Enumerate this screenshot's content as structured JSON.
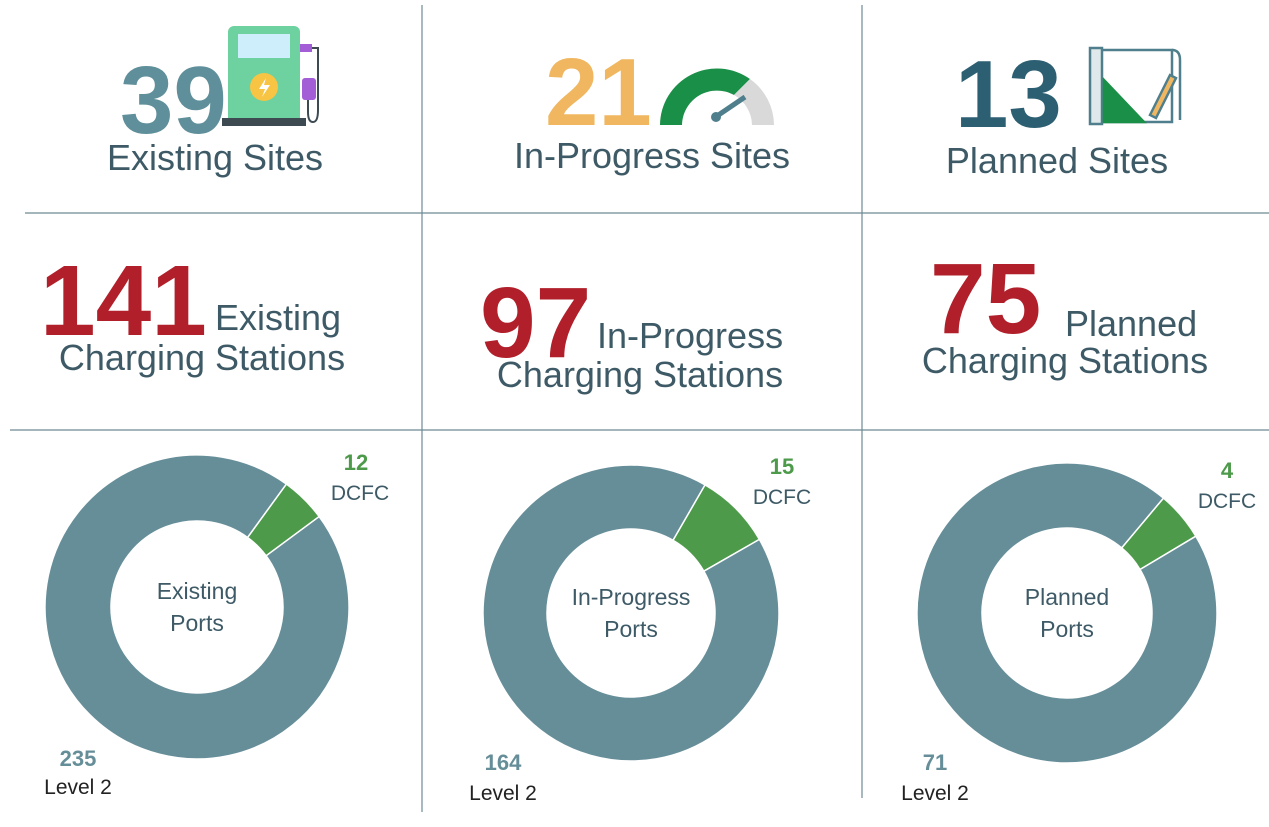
{
  "kpis": [
    {
      "value": 39,
      "label": "Existing Sites",
      "color": "#5f8f9a"
    },
    {
      "value": 21,
      "label": "In-Progress Sites",
      "color": "#f0b760"
    },
    {
      "value": 13,
      "label": "Planned Sites",
      "color": "#2d5f73"
    }
  ],
  "stations": [
    {
      "value": 141,
      "label_lines": [
        "Existing",
        "Charging Stations"
      ],
      "color": "#b01f2a"
    },
    {
      "value": 97,
      "label_lines": [
        "In-Progress",
        "Charging Stations"
      ],
      "color": "#b01f2a"
    },
    {
      "value": 75,
      "label_lines": [
        "Planned",
        "Charging Stations"
      ],
      "color": "#b01f2a"
    }
  ],
  "chart_data": [
    {
      "type": "donut",
      "categories": [
        "Level 2",
        "DCFC"
      ],
      "values": [
        235,
        12
      ],
      "colors": [
        "#668e99",
        "#4e9a4b"
      ],
      "center_label": [
        "Existing",
        "Ports"
      ],
      "startangle": 36
    },
    {
      "type": "donut",
      "categories": [
        "Level 2",
        "DCFC"
      ],
      "values": [
        164,
        15
      ],
      "colors": [
        "#668e99",
        "#4e9a4b"
      ],
      "center_label": [
        "In-Progress",
        "Ports"
      ],
      "startangle": 30
    },
    {
      "type": "donut",
      "categories": [
        "Level 2",
        "DCFC"
      ],
      "values": [
        71,
        4
      ],
      "colors": [
        "#668e99",
        "#4e9a4b"
      ],
      "center_label": [
        "Planned",
        "Ports"
      ],
      "startangle": 40
    }
  ]
}
